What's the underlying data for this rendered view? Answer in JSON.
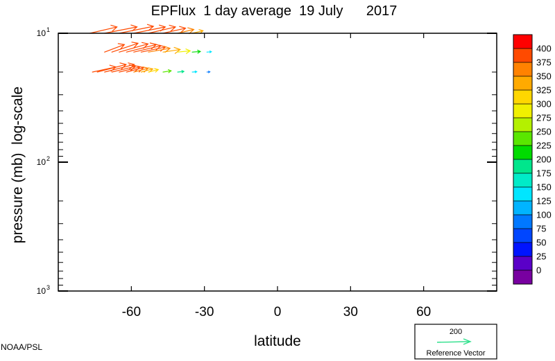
{
  "chart_data": {
    "type": "vector-field",
    "title": "EPFlux  1 day average  19 July      2017",
    "xlabel": "latitude",
    "ylabel": "pressure (mb)  log-scale",
    "x_ticks": [
      -60,
      -30,
      0,
      30,
      60
    ],
    "y_ticks": [
      {
        "value": 10,
        "base": "10",
        "exp": "1"
      },
      {
        "value": 100,
        "base": "10",
        "exp": "2"
      },
      {
        "value": 1000,
        "base": "10",
        "exp": "3"
      }
    ],
    "xlim": [
      -90,
      90
    ],
    "ylim_pressure_mb": [
      1000,
      10
    ],
    "y_scale": "log",
    "colorbar": {
      "levels": [
        "400",
        "375",
        "350",
        "325",
        "300",
        "275",
        "250",
        "225",
        "200",
        "175",
        "150",
        "125",
        "100",
        "75",
        "50",
        "25",
        "0"
      ],
      "colors": [
        "#ff0000",
        "#ff4a00",
        "#ff8200",
        "#ffaa00",
        "#ffd700",
        "#f0f000",
        "#b4f000",
        "#5ae600",
        "#00dc00",
        "#00e68c",
        "#00ebc8",
        "#00e6ff",
        "#00b4ff",
        "#0078ff",
        "#0046ff",
        "#0014ff",
        "#5a00c8",
        "#7800a0"
      ]
    },
    "reference_vector": {
      "value": "200",
      "label": "Reference Vector",
      "color": "#2fe08c"
    },
    "vectors": [
      {
        "lat": -76,
        "p": 20,
        "u": 26,
        "v": 5.6,
        "c": 400
      },
      {
        "lat": -74,
        "p": 20,
        "u": 32,
        "v": 8.4,
        "c": 400
      },
      {
        "lat": -71,
        "p": 20,
        "u": 33,
        "v": 8.4,
        "c": 400
      },
      {
        "lat": -68,
        "p": 20,
        "u": 26,
        "v": 6.3,
        "c": 400
      },
      {
        "lat": -65,
        "p": 20,
        "u": 23,
        "v": 5.6,
        "c": 400
      },
      {
        "lat": -62,
        "p": 20,
        "u": 19,
        "v": 4.9,
        "c": 400
      },
      {
        "lat": -59,
        "p": 20,
        "u": 16,
        "v": 4.2,
        "c": 375
      },
      {
        "lat": -56,
        "p": 20,
        "u": 13,
        "v": 3.5,
        "c": 350
      },
      {
        "lat": -53,
        "p": 20,
        "u": 11,
        "v": 2.8,
        "c": 325
      },
      {
        "lat": -47,
        "p": 20,
        "u": 9,
        "v": 1.4,
        "c": 250
      },
      {
        "lat": -41,
        "p": 20,
        "u": 7,
        "v": 0.7,
        "c": 200
      },
      {
        "lat": -35,
        "p": 20,
        "u": 5,
        "v": 0.4,
        "c": 150
      },
      {
        "lat": -29,
        "p": 20,
        "u": 3.5,
        "v": 0.2,
        "c": 100
      },
      {
        "lat": -71,
        "p": 14,
        "u": 22,
        "v": 8.4,
        "c": 400
      },
      {
        "lat": -68,
        "p": 14,
        "u": 29,
        "v": 9.8,
        "c": 400
      },
      {
        "lat": -65,
        "p": 14,
        "u": 32,
        "v": 9.1,
        "c": 400
      },
      {
        "lat": -62,
        "p": 14,
        "u": 33,
        "v": 8.4,
        "c": 400
      },
      {
        "lat": -59,
        "p": 14,
        "u": 30,
        "v": 7.0,
        "c": 400
      },
      {
        "lat": -56,
        "p": 14,
        "u": 27,
        "v": 5.6,
        "c": 400
      },
      {
        "lat": -53,
        "p": 14,
        "u": 24,
        "v": 4.2,
        "c": 375
      },
      {
        "lat": -47,
        "p": 14,
        "u": 19,
        "v": 2.8,
        "c": 350
      },
      {
        "lat": -41,
        "p": 14,
        "u": 14,
        "v": 1.4,
        "c": 300
      },
      {
        "lat": -35,
        "p": 14,
        "u": 9,
        "v": 0.7,
        "c": 225
      },
      {
        "lat": -29,
        "p": 14,
        "u": 5,
        "v": 0.4,
        "c": 150
      },
      {
        "lat": -77,
        "p": 10,
        "u": 30,
        "v": 7.0,
        "c": 400
      },
      {
        "lat": -71,
        "p": 10,
        "u": 36,
        "v": 7.0,
        "c": 400
      },
      {
        "lat": -65,
        "p": 10,
        "u": 38,
        "v": 7.7,
        "c": 400
      },
      {
        "lat": -59,
        "p": 10,
        "u": 35,
        "v": 7.0,
        "c": 400
      },
      {
        "lat": -53,
        "p": 10,
        "u": 30,
        "v": 7.0,
        "c": 400
      },
      {
        "lat": -47,
        "p": 10,
        "u": 25,
        "v": 5.6,
        "c": 400
      },
      {
        "lat": -41,
        "p": 10,
        "u": 18,
        "v": 4.2,
        "c": 375
      },
      {
        "lat": -35,
        "p": 10,
        "u": 12,
        "v": 2.8,
        "c": 350
      }
    ]
  },
  "footer": {
    "credit": "NOAA/PSL"
  }
}
